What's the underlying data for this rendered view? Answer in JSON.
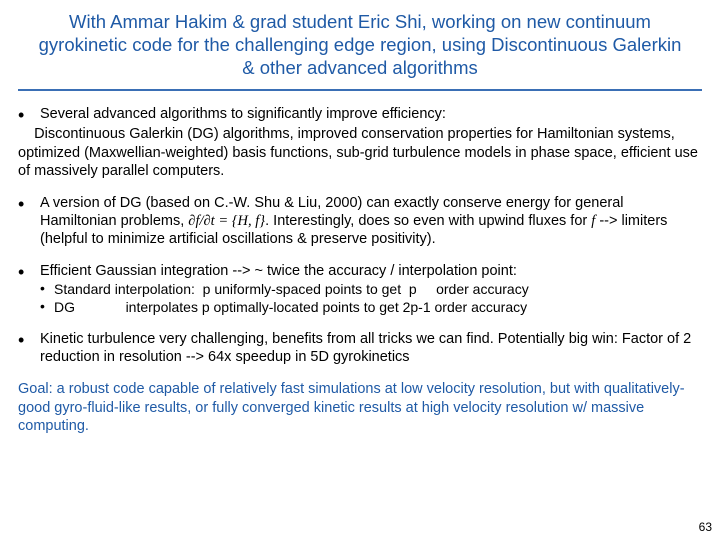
{
  "title": "With Ammar Hakim & grad student Eric Shi, working on new continuum gyrokinetic code for the challenging edge region, using Discontinuous Galerkin & other advanced algorithms",
  "b1": {
    "lead": "Several advanced algorithms to significantly improve efficiency:",
    "cont": "    Discontinuous Galerkin (DG) algorithms, improved conservation properties for Hamiltonian systems, optimized (Maxwellian-weighted) basis functions, sub-grid turbulence models in phase space, efficient use of massively parallel computers."
  },
  "b2": {
    "lead_a": "A version of DG (based on C.-W. Shu & Liu, 2000) can exactly conserve energy for general Hamiltonian problems, ",
    "ham": "∂f/∂t = {H, f}",
    "lead_b": ".  Interestingly, does so even with upwind fluxes for ",
    "fvar": "f",
    "lead_c": " --> limiters (helpful to minimize artificial oscillations & preserve positivity)."
  },
  "b3": {
    "lead": "Efficient Gaussian integration --> ~ twice the accuracy / interpolation point:",
    "s1": "Standard interpolation:  p uniformly-spaced points to get  p     order accuracy",
    "s2": "DG             interpolates p optimally-located points to get 2p-1 order accuracy"
  },
  "b4": {
    "lead": "Kinetic turbulence very challenging, benefits from all tricks we can find.  Potentially big win:  Factor of 2 reduction in resolution --> 64x speedup in 5D gyrokinetics"
  },
  "goal": "Goal:  a robust code capable of relatively fast simulations at low velocity resolution, but with qualitatively-good gyro-fluid-like results, or fully converged kinetic results at high velocity resolution w/ massive computing.",
  "page": "63",
  "colors": {
    "accent": "#1f5aa6",
    "rule": "#3a6fb5",
    "text": "#000000",
    "bg": "#ffffff"
  }
}
